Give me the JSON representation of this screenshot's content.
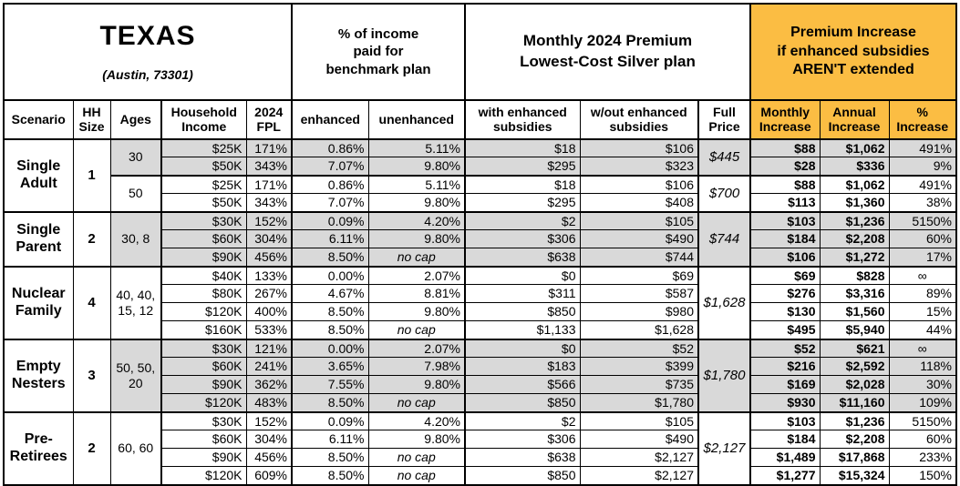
{
  "colors": {
    "accent_orange": "#FBBD43",
    "row_shade_gray": "#D9D9D9",
    "border_black": "#000000"
  },
  "chart_data": {
    "type": "table",
    "title": "TEXAS",
    "subtitle": "(Austin, 73301)",
    "column_groups": [
      "% of income\npaid for\nbenchmark plan",
      "Monthly 2024 Premium\nLowest-Cost Silver plan",
      "Premium Increase\nif enhanced subsidies\nAREN'T extended"
    ],
    "columns": [
      "Scenario",
      "HH\nSize",
      "Ages",
      "Household\nIncome",
      "2024\nFPL",
      "enhanced",
      "unenhanced",
      "with enhanced\nsubsidies",
      "w/out enhanced\nsubsidies",
      "Full\nPrice",
      "Monthly\nIncrease",
      "Annual\nIncrease",
      "%\nIncrease"
    ],
    "groups": [
      {
        "scenario": "Single Adult",
        "hh_size": "1",
        "subgroups": [
          {
            "ages": "30",
            "shaded": true,
            "full_price": "$445",
            "rows": [
              {
                "income": "$25K",
                "fpl": "171%",
                "enhanced": "0.86%",
                "unenhanced": "5.11%",
                "with_subsidies": "$18",
                "without_subsidies": "$106",
                "monthly_increase": "$88",
                "annual_increase": "$1,062",
                "pct_increase": "491%"
              },
              {
                "income": "$50K",
                "fpl": "343%",
                "enhanced": "7.07%",
                "unenhanced": "9.80%",
                "with_subsidies": "$295",
                "without_subsidies": "$323",
                "monthly_increase": "$28",
                "annual_increase": "$336",
                "pct_increase": "9%"
              }
            ]
          },
          {
            "ages": "50",
            "shaded": false,
            "full_price": "$700",
            "rows": [
              {
                "income": "$25K",
                "fpl": "171%",
                "enhanced": "0.86%",
                "unenhanced": "5.11%",
                "with_subsidies": "$18",
                "without_subsidies": "$106",
                "monthly_increase": "$88",
                "annual_increase": "$1,062",
                "pct_increase": "491%"
              },
              {
                "income": "$50K",
                "fpl": "343%",
                "enhanced": "7.07%",
                "unenhanced": "9.80%",
                "with_subsidies": "$295",
                "without_subsidies": "$408",
                "monthly_increase": "$113",
                "annual_increase": "$1,360",
                "pct_increase": "38%"
              }
            ]
          }
        ]
      },
      {
        "scenario": "Single Parent",
        "hh_size": "2",
        "subgroups": [
          {
            "ages": "30, 8",
            "shaded": true,
            "full_price": "$744",
            "rows": [
              {
                "income": "$30K",
                "fpl": "152%",
                "enhanced": "0.09%",
                "unenhanced": "4.20%",
                "with_subsidies": "$2",
                "without_subsidies": "$105",
                "monthly_increase": "$103",
                "annual_increase": "$1,236",
                "pct_increase": "5150%"
              },
              {
                "income": "$60K",
                "fpl": "304%",
                "enhanced": "6.11%",
                "unenhanced": "9.80%",
                "with_subsidies": "$306",
                "without_subsidies": "$490",
                "monthly_increase": "$184",
                "annual_increase": "$2,208",
                "pct_increase": "60%"
              },
              {
                "income": "$90K",
                "fpl": "456%",
                "enhanced": "8.50%",
                "unenhanced": "no cap",
                "with_subsidies": "$638",
                "without_subsidies": "$744",
                "monthly_increase": "$106",
                "annual_increase": "$1,272",
                "pct_increase": "17%"
              }
            ]
          }
        ]
      },
      {
        "scenario": "Nuclear Family",
        "hh_size": "4",
        "subgroups": [
          {
            "ages": "40, 40,\n15, 12",
            "shaded": false,
            "full_price": "$1,628",
            "rows": [
              {
                "income": "$40K",
                "fpl": "133%",
                "enhanced": "0.00%",
                "unenhanced": "2.07%",
                "with_subsidies": "$0",
                "without_subsidies": "$69",
                "monthly_increase": "$69",
                "annual_increase": "$828",
                "pct_increase": "∞"
              },
              {
                "income": "$80K",
                "fpl": "267%",
                "enhanced": "4.67%",
                "unenhanced": "8.81%",
                "with_subsidies": "$311",
                "without_subsidies": "$587",
                "monthly_increase": "$276",
                "annual_increase": "$3,316",
                "pct_increase": "89%"
              },
              {
                "income": "$120K",
                "fpl": "400%",
                "enhanced": "8.50%",
                "unenhanced": "9.80%",
                "with_subsidies": "$850",
                "without_subsidies": "$980",
                "monthly_increase": "$130",
                "annual_increase": "$1,560",
                "pct_increase": "15%"
              },
              {
                "income": "$160K",
                "fpl": "533%",
                "enhanced": "8.50%",
                "unenhanced": "no cap",
                "with_subsidies": "$1,133",
                "without_subsidies": "$1,628",
                "monthly_increase": "$495",
                "annual_increase": "$5,940",
                "pct_increase": "44%"
              }
            ]
          }
        ]
      },
      {
        "scenario": "Empty Nesters",
        "hh_size": "3",
        "subgroups": [
          {
            "ages": "50, 50,\n20",
            "shaded": true,
            "full_price": "$1,780",
            "rows": [
              {
                "income": "$30K",
                "fpl": "121%",
                "enhanced": "0.00%",
                "unenhanced": "2.07%",
                "with_subsidies": "$0",
                "without_subsidies": "$52",
                "monthly_increase": "$52",
                "annual_increase": "$621",
                "pct_increase": "∞"
              },
              {
                "income": "$60K",
                "fpl": "241%",
                "enhanced": "3.65%",
                "unenhanced": "7.98%",
                "with_subsidies": "$183",
                "without_subsidies": "$399",
                "monthly_increase": "$216",
                "annual_increase": "$2,592",
                "pct_increase": "118%"
              },
              {
                "income": "$90K",
                "fpl": "362%",
                "enhanced": "7.55%",
                "unenhanced": "9.80%",
                "with_subsidies": "$566",
                "without_subsidies": "$735",
                "monthly_increase": "$169",
                "annual_increase": "$2,028",
                "pct_increase": "30%"
              },
              {
                "income": "$120K",
                "fpl": "483%",
                "enhanced": "8.50%",
                "unenhanced": "no cap",
                "with_subsidies": "$850",
                "without_subsidies": "$1,780",
                "monthly_increase": "$930",
                "annual_increase": "$11,160",
                "pct_increase": "109%"
              }
            ]
          }
        ]
      },
      {
        "scenario": "Pre-Retirees",
        "hh_size": "2",
        "subgroups": [
          {
            "ages": "60, 60",
            "shaded": false,
            "full_price": "$2,127",
            "rows": [
              {
                "income": "$30K",
                "fpl": "152%",
                "enhanced": "0.09%",
                "unenhanced": "4.20%",
                "with_subsidies": "$2",
                "without_subsidies": "$105",
                "monthly_increase": "$103",
                "annual_increase": "$1,236",
                "pct_increase": "5150%"
              },
              {
                "income": "$60K",
                "fpl": "304%",
                "enhanced": "6.11%",
                "unenhanced": "9.80%",
                "with_subsidies": "$306",
                "without_subsidies": "$490",
                "monthly_increase": "$184",
                "annual_increase": "$2,208",
                "pct_increase": "60%"
              },
              {
                "income": "$90K",
                "fpl": "456%",
                "enhanced": "8.50%",
                "unenhanced": "no cap",
                "with_subsidies": "$638",
                "without_subsidies": "$2,127",
                "monthly_increase": "$1,489",
                "annual_increase": "$17,868",
                "pct_increase": "233%"
              },
              {
                "income": "$120K",
                "fpl": "609%",
                "enhanced": "8.50%",
                "unenhanced": "no cap",
                "with_subsidies": "$850",
                "without_subsidies": "$2,127",
                "monthly_increase": "$1,277",
                "annual_increase": "$15,324",
                "pct_increase": "150%"
              }
            ]
          }
        ]
      }
    ]
  }
}
